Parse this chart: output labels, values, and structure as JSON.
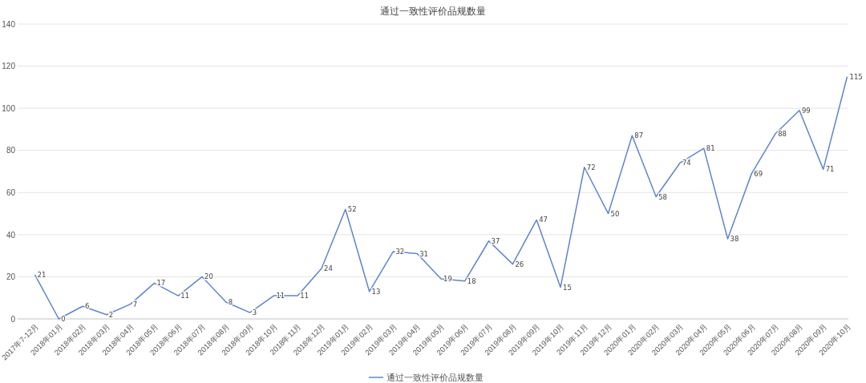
{
  "chart_data": {
    "type": "line",
    "title": "通过一致性评价品规数量",
    "categories": [
      "2017年7-12月",
      "2018年01月",
      "2018年02月",
      "2018年03月",
      "2018年04月",
      "2018年05月",
      "2018年06月",
      "2018年07月",
      "2018年08月",
      "2018年09月",
      "2018年10月",
      "2018年11月",
      "2018年12月",
      "2019年01月",
      "2019年02月",
      "2019年03月",
      "2019年04月",
      "2019年05月",
      "2019年06月",
      "2019年07月",
      "2019年08月",
      "2019年09月",
      "2019年10月",
      "2019年11月",
      "2019年12月",
      "2020年01月",
      "2020年02月",
      "2020年03月",
      "2020年04月",
      "2020年05月",
      "2020年06月",
      "2020年07月",
      "2020年08月",
      "2020年09月",
      "2020年10月"
    ],
    "series": [
      {
        "name": "通过一致性评价品规数量",
        "color": "#5f84cc",
        "values": [
          21,
          0,
          6,
          2,
          7,
          17,
          11,
          20,
          8,
          3,
          11,
          11,
          24,
          52,
          13,
          32,
          31,
          19,
          18,
          37,
          26,
          47,
          15,
          72,
          50,
          87,
          58,
          74,
          81,
          38,
          69,
          88,
          99,
          71,
          115
        ]
      }
    ],
    "ylim": [
      0,
      140
    ],
    "yticks": [
      0,
      20,
      40,
      60,
      80,
      100,
      120,
      140
    ],
    "grid": "y",
    "legend": "bottom",
    "data_labels": true,
    "marker": "none",
    "line_style": "solid"
  }
}
